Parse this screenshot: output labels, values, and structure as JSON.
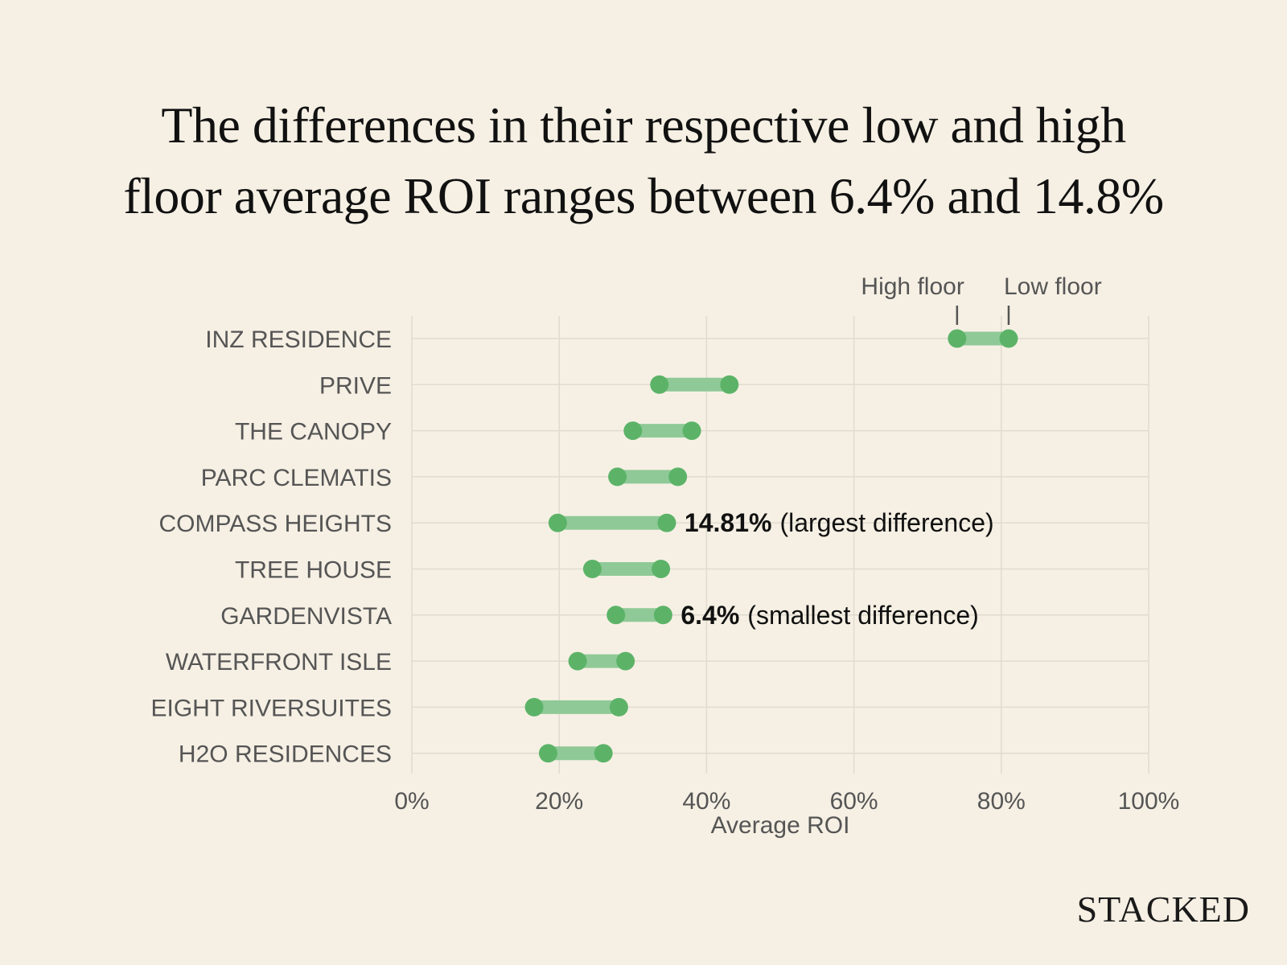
{
  "title": {
    "line1": "The differences in their respective low and high",
    "line2": "floor average ROI ranges between 6.4% and 14.8%"
  },
  "brand": "STACKED",
  "colors": {
    "background": "#f6f0e4",
    "dot": "#5cb368",
    "range_bar": "#8fc997",
    "grid": "#e0dbcf",
    "label": "#555555",
    "annotation": "#111111"
  },
  "chart_data": {
    "type": "dumbbell",
    "xlabel": "Average ROI",
    "xlim": [
      0,
      100
    ],
    "x_ticks": [
      0,
      20,
      40,
      60,
      80,
      100
    ],
    "x_tick_labels": [
      "0%",
      "20%",
      "40%",
      "60%",
      "80%",
      "100%"
    ],
    "grid": true,
    "legend": {
      "high_label": "High floor",
      "low_label": "Low floor",
      "position": "top-right, above first row"
    },
    "categories": [
      "INZ RESIDENCE",
      "PRIVE",
      "THE CANOPY",
      "PARC CLEMATIS",
      "COMPASS HEIGHTS",
      "TREE HOUSE",
      "GARDENVISTA",
      "WATERFRONT ISLE",
      "EIGHT RIVERSUITES",
      "H2O RESIDENCES"
    ],
    "series": [
      {
        "name": "High floor",
        "values": [
          74,
          33.6,
          30,
          27.9,
          19.8,
          24.5,
          27.7,
          22.5,
          16.6,
          18.5
        ]
      },
      {
        "name": "Low floor",
        "values": [
          81,
          43.1,
          38,
          36.1,
          34.6,
          33.8,
          34.1,
          29,
          28.1,
          26
        ]
      }
    ],
    "annotations": [
      {
        "category": "COMPASS HEIGHTS",
        "value": "14.81%",
        "text": "(largest difference)"
      },
      {
        "category": "GARDENVISTA",
        "value": "6.4%",
        "text": "(smallest difference)"
      }
    ]
  }
}
